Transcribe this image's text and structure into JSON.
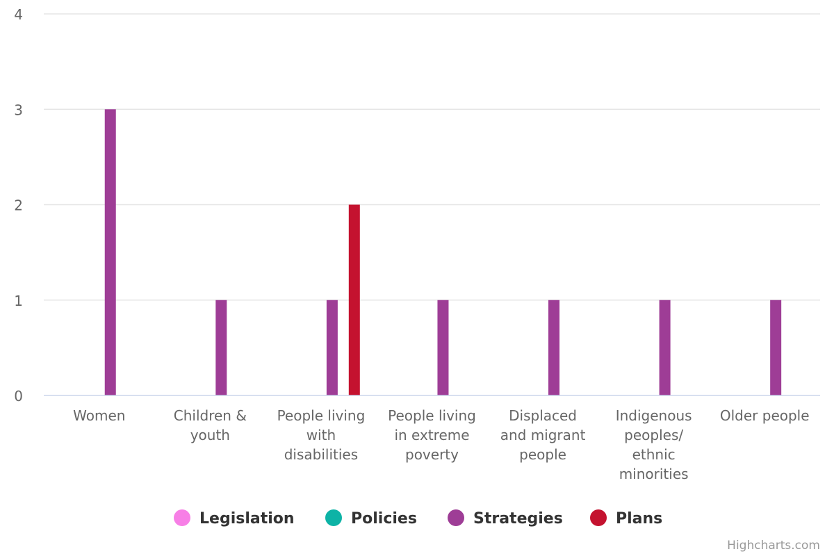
{
  "chart_data": {
    "type": "bar",
    "categories": [
      [
        "Women"
      ],
      [
        "Children &",
        "youth"
      ],
      [
        "People living",
        "with",
        "disabilities"
      ],
      [
        "People living",
        "in extreme",
        "poverty"
      ],
      [
        "Displaced",
        "and migrant",
        "people"
      ],
      [
        "Indigenous",
        "peoples/",
        "ethnic",
        "minorities"
      ],
      [
        "Older people"
      ]
    ],
    "series": [
      {
        "name": "Legislation",
        "color": "#f77fe6",
        "values": [
          0,
          0,
          0,
          0,
          0,
          0,
          0
        ]
      },
      {
        "name": "Policies",
        "color": "#0db3a6",
        "values": [
          0,
          0,
          0,
          0,
          0,
          0,
          0
        ]
      },
      {
        "name": "Strategies",
        "color": "#9e3d96",
        "values": [
          3,
          1,
          1,
          1,
          1,
          1,
          1
        ]
      },
      {
        "name": "Plans",
        "color": "#c4122f",
        "values": [
          0,
          0,
          2,
          0,
          0,
          0,
          0
        ]
      }
    ],
    "yticks": [
      0,
      1,
      2,
      3,
      4
    ],
    "ylim": [
      0,
      4
    ],
    "grid": true,
    "legend_position": "bottom"
  },
  "credit": "Highcharts.com"
}
